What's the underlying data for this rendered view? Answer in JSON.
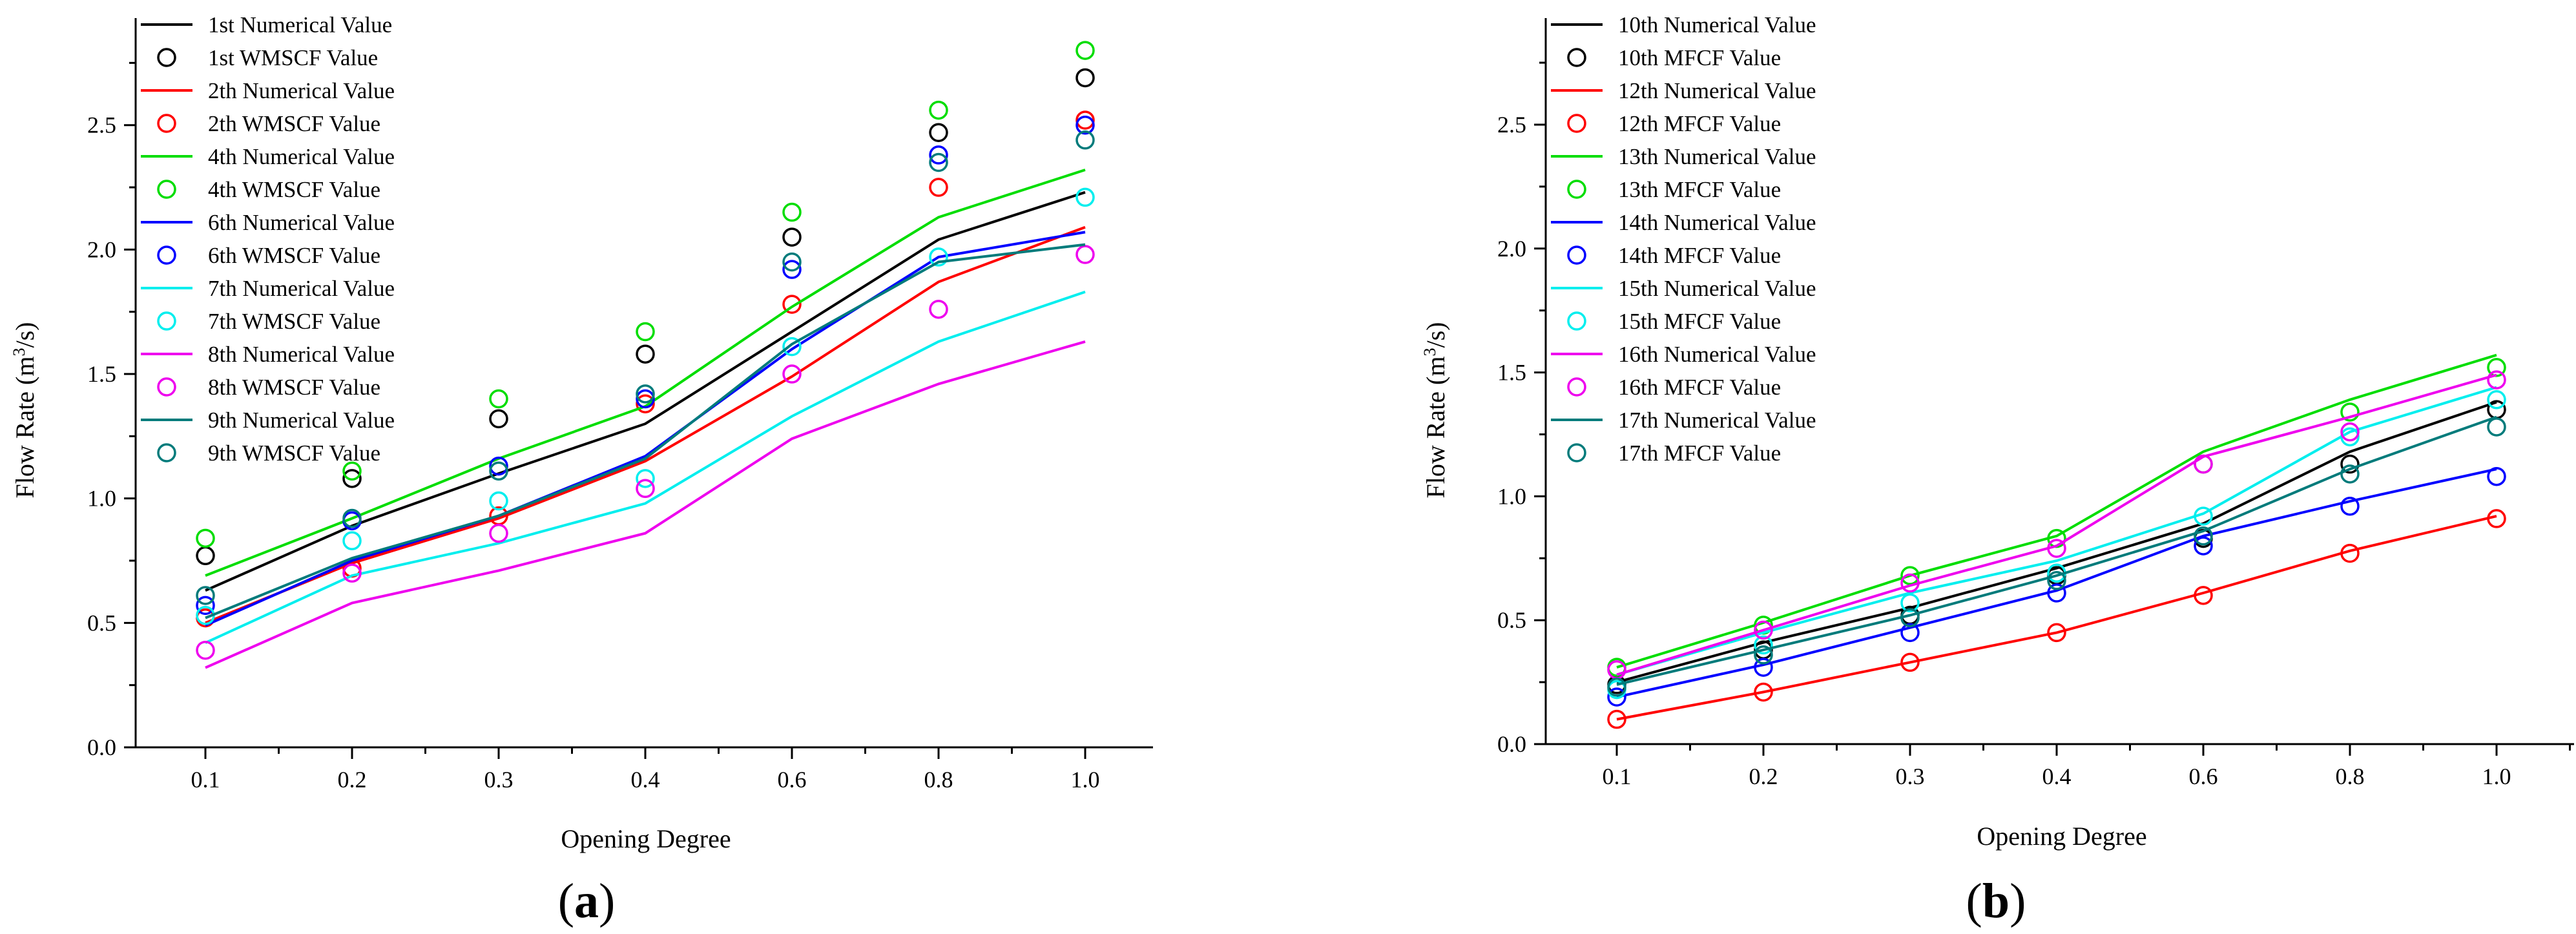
{
  "chart_data": [
    {
      "type": "line",
      "panel_label": "a",
      "xlabel": "Opening Degree",
      "ylabel": "Flow Rate (m³/s)",
      "ylabel_base": "Flow Rate (m",
      "ylabel_sup": "3",
      "ylabel_end": "/s)",
      "x_tick_labels": [
        "0.1",
        "0.2",
        "0.3",
        "0.4",
        "0.6",
        "0.8",
        "1.0"
      ],
      "ylim": [
        0,
        2.93
      ],
      "y_ticks": [
        0.0,
        0.5,
        1.0,
        1.5,
        2.0,
        2.5
      ],
      "y_tick_labels": [
        "0.0",
        "0.5",
        "1.0",
        "1.5",
        "2.0",
        "2.5"
      ],
      "legend_location": "top-left",
      "series": [
        {
          "id": "1",
          "color": "#000000",
          "line_name": "1st Numerical Value",
          "marker_name": "1st WMSCF Value",
          "line": [
            0.63,
            0.89,
            1.1,
            1.3,
            1.67,
            2.04,
            2.23
          ],
          "markers": [
            0.77,
            1.08,
            1.32,
            1.58,
            2.05,
            2.47,
            2.69
          ]
        },
        {
          "id": "2",
          "color": "#ff0000",
          "line_name": "2th Numerical Value",
          "marker_name": "2th WMSCF Value",
          "line": [
            0.5,
            0.74,
            0.92,
            1.15,
            1.49,
            1.87,
            2.09
          ],
          "markers": [
            0.52,
            0.72,
            0.93,
            1.38,
            1.78,
            2.25,
            2.52
          ]
        },
        {
          "id": "4",
          "color": "#00dd00",
          "line_name": "4th Numerical Value",
          "marker_name": "4th WMSCF Value",
          "line": [
            0.69,
            0.92,
            1.16,
            1.37,
            1.77,
            2.13,
            2.32
          ],
          "markers": [
            0.84,
            1.11,
            1.4,
            1.67,
            2.15,
            2.56,
            2.8
          ]
        },
        {
          "id": "6",
          "color": "#0000ff",
          "line_name": "6th Numerical Value",
          "marker_name": "6th WMSCF Value",
          "line": [
            0.49,
            0.75,
            0.93,
            1.17,
            1.6,
            1.97,
            2.07
          ],
          "markers": [
            0.57,
            0.91,
            1.13,
            1.4,
            1.92,
            2.38,
            2.5
          ]
        },
        {
          "id": "7",
          "color": "#00eeee",
          "line_name": "7th Numerical Value",
          "marker_name": "7th WMSCF Value",
          "line": [
            0.42,
            0.69,
            0.82,
            0.98,
            1.33,
            1.63,
            1.83
          ],
          "markers": [
            0.53,
            0.83,
            0.99,
            1.08,
            1.61,
            1.97,
            2.21
          ]
        },
        {
          "id": "8",
          "color": "#ee00ee",
          "line_name": "8th Numerical Value",
          "marker_name": "8th WMSCF Value",
          "line": [
            0.32,
            0.58,
            0.71,
            0.86,
            1.24,
            1.46,
            1.63
          ],
          "markers": [
            0.39,
            0.7,
            0.86,
            1.04,
            1.5,
            1.76,
            1.98
          ]
        },
        {
          "id": "9",
          "color": "#007b7b",
          "line_name": "9th Numerical Value",
          "marker_name": "9th WMSCF Value",
          "line": [
            0.52,
            0.76,
            0.93,
            1.16,
            1.62,
            1.95,
            2.02
          ],
          "markers": [
            0.61,
            0.92,
            1.11,
            1.42,
            1.95,
            2.35,
            2.44
          ]
        }
      ]
    },
    {
      "type": "line",
      "panel_label": "b",
      "xlabel": "Opening Degree",
      "ylabel": "Flow Rate (m³/s)",
      "ylabel_base": "Flow Rate (m",
      "ylabel_sup": "3",
      "ylabel_end": "/s)",
      "x_tick_labels": [
        "0.1",
        "0.2",
        "0.3",
        "0.4",
        "0.6",
        "0.8",
        "1.0"
      ],
      "ylim": [
        0,
        2.93
      ],
      "y_ticks": [
        0.0,
        0.5,
        1.0,
        1.5,
        2.0,
        2.5
      ],
      "y_tick_labels": [
        "0.0",
        "0.5",
        "1.0",
        "1.5",
        "2.0",
        "2.5"
      ],
      "legend_location": "top-left",
      "series": [
        {
          "id": "10",
          "color": "#000000",
          "line_name": "10th Numerical Value",
          "marker_name": "10th MFCF Value",
          "line": [
            0.25,
            0.41,
            0.55,
            0.71,
            0.89,
            1.18,
            1.38
          ],
          "markers": [
            0.24,
            0.38,
            0.52,
            0.68,
            0.83,
            1.13,
            1.35
          ]
        },
        {
          "id": "12",
          "color": "#ff0000",
          "line_name": "12th Numerical Value",
          "marker_name": "12th MFCF Value",
          "line": [
            0.1,
            0.21,
            0.33,
            0.45,
            0.61,
            0.78,
            0.92
          ],
          "markers": [
            0.1,
            0.21,
            0.33,
            0.45,
            0.6,
            0.77,
            0.91
          ]
        },
        {
          "id": "13",
          "color": "#00dd00",
          "line_name": "13th Numerical Value",
          "marker_name": "13th MFCF Value",
          "line": [
            0.31,
            0.49,
            0.68,
            0.84,
            1.18,
            1.39,
            1.57
          ],
          "markers": [
            0.31,
            0.48,
            0.68,
            0.83,
            1.13,
            1.34,
            1.52
          ]
        },
        {
          "id": "14",
          "color": "#0000ff",
          "line_name": "14th Numerical Value",
          "marker_name": "14th MFCF Value",
          "line": [
            0.19,
            0.32,
            0.47,
            0.62,
            0.84,
            0.98,
            1.11
          ],
          "markers": [
            0.19,
            0.31,
            0.45,
            0.61,
            0.8,
            0.96,
            1.08
          ]
        },
        {
          "id": "15",
          "color": "#00eeee",
          "line_name": "15th Numerical Value",
          "marker_name": "15th MFCF Value",
          "line": [
            0.28,
            0.45,
            0.61,
            0.74,
            0.93,
            1.26,
            1.44
          ],
          "markers": [
            0.22,
            0.4,
            0.57,
            0.69,
            0.92,
            1.24,
            1.39
          ]
        },
        {
          "id": "16",
          "color": "#ee00ee",
          "line_name": "16th Numerical Value",
          "marker_name": "16th MFCF Value",
          "line": [
            0.28,
            0.46,
            0.64,
            0.8,
            1.16,
            1.32,
            1.49
          ],
          "markers": [
            0.3,
            0.46,
            0.65,
            0.79,
            1.13,
            1.26,
            1.47
          ]
        },
        {
          "id": "17",
          "color": "#007b7b",
          "line_name": "17th Numerical Value",
          "marker_name": "17th MFCF Value",
          "line": [
            0.24,
            0.38,
            0.52,
            0.68,
            0.86,
            1.11,
            1.32
          ],
          "markers": [
            0.23,
            0.36,
            0.51,
            0.66,
            0.84,
            1.09,
            1.28
          ]
        }
      ]
    }
  ]
}
